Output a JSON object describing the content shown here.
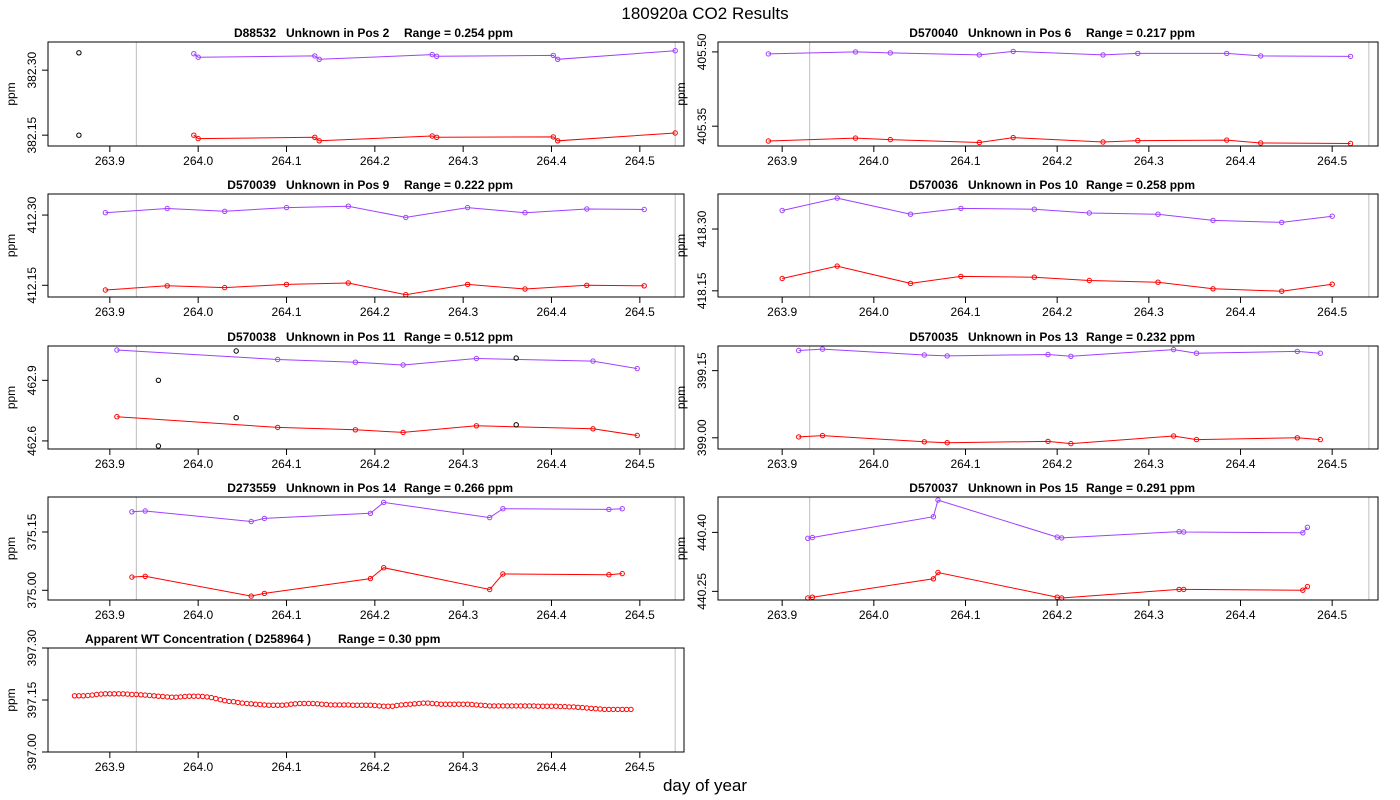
{
  "figure": {
    "title": "180920a  CO2 Results",
    "xlabel": "day of year",
    "xlim": [
      263.83,
      264.55
    ],
    "x_ticks": [
      263.9,
      264.0,
      264.1,
      264.2,
      264.3,
      264.4,
      264.5
    ],
    "x_tick_labels": [
      "263.9",
      "264.0",
      "264.1",
      "264.2",
      "264.3",
      "264.4",
      "264.5"
    ],
    "vlines": [
      263.93,
      264.54
    ],
    "colors": {
      "series_a": "#a040ff",
      "series_b": "#ff0000",
      "extra_points": "#000000",
      "vline": "#bebebe"
    }
  },
  "chart_data": [
    {
      "type": "line",
      "title_id": "D88532",
      "title_desc": "Unknown in Pos 2",
      "title_range": "Range =  0.254 ppm",
      "ylabel": "ppm",
      "ylim": [
        382.125,
        382.365
      ],
      "y_ticks": [
        382.15,
        382.3
      ],
      "y_tick_labels": [
        "382.15",
        "382.30"
      ],
      "series": [
        {
          "name": "upper",
          "color": "#a040ff",
          "x": [
            263.995,
            264.0,
            264.132,
            264.137,
            264.265,
            264.27,
            264.402,
            264.407,
            264.54
          ],
          "y": [
            382.338,
            382.33,
            382.333,
            382.325,
            382.336,
            382.332,
            382.334,
            382.325,
            382.345
          ]
        },
        {
          "name": "lower",
          "color": "#ff0000",
          "x": [
            263.995,
            264.0,
            264.132,
            264.137,
            264.265,
            264.27,
            264.402,
            264.407,
            264.54
          ],
          "y": [
            382.15,
            382.142,
            382.145,
            382.137,
            382.148,
            382.145,
            382.146,
            382.137,
            382.155
          ]
        }
      ],
      "extra_points": {
        "x": [
          263.865,
          263.865
        ],
        "y": [
          382.34,
          382.15
        ]
      }
    },
    {
      "type": "line",
      "title_id": "D570040",
      "title_desc": "Unknown in Pos 6",
      "title_range": "Range =  0.217 ppm",
      "ylabel": "ppm",
      "ylim": [
        405.31,
        405.52
      ],
      "y_ticks": [
        405.35,
        405.5
      ],
      "y_tick_labels": [
        "405.35",
        "405.50"
      ],
      "series": [
        {
          "name": "upper",
          "color": "#a040ff",
          "x": [
            263.885,
            263.98,
            264.018,
            264.115,
            264.152,
            264.25,
            264.288,
            264.385,
            264.422,
            264.52
          ],
          "y": [
            405.496,
            405.5,
            405.498,
            405.494,
            405.501,
            405.494,
            405.497,
            405.497,
            405.492,
            405.491
          ]
        },
        {
          "name": "lower",
          "color": "#ff0000",
          "x": [
            263.885,
            263.98,
            264.018,
            264.115,
            264.152,
            264.25,
            264.288,
            264.385,
            264.422,
            264.52
          ],
          "y": [
            405.32,
            405.326,
            405.323,
            405.317,
            405.327,
            405.318,
            405.321,
            405.322,
            405.316,
            405.315
          ]
        }
      ],
      "extra_points": {
        "x": [],
        "y": []
      }
    },
    {
      "type": "line",
      "title_id": "D570039",
      "title_desc": "Unknown in Pos 9",
      "title_range": "Range =  0.222 ppm",
      "ylabel": "ppm",
      "ylim": [
        412.125,
        412.345
      ],
      "y_ticks": [
        412.15,
        412.3
      ],
      "y_tick_labels": [
        "412.15",
        "412.30"
      ],
      "series": [
        {
          "name": "upper",
          "color": "#a040ff",
          "x": [
            263.895,
            263.965,
            264.03,
            264.1,
            264.17,
            264.235,
            264.305,
            264.37,
            264.44,
            264.505
          ],
          "y": [
            412.305,
            412.314,
            412.308,
            412.316,
            412.319,
            412.295,
            412.316,
            412.305,
            412.313,
            412.312
          ]
        },
        {
          "name": "lower",
          "color": "#ff0000",
          "x": [
            263.895,
            263.965,
            264.03,
            264.1,
            264.17,
            264.235,
            264.305,
            264.37,
            264.44,
            264.505
          ],
          "y": [
            412.14,
            412.149,
            412.145,
            412.152,
            412.155,
            412.13,
            412.152,
            412.142,
            412.15,
            412.149
          ]
        }
      ],
      "extra_points": {
        "x": [],
        "y": []
      }
    },
    {
      "type": "line",
      "title_id": "D570036",
      "title_desc": "Unknown in Pos 10",
      "title_range": "Range =  0.258 ppm",
      "ylabel": "ppm",
      "ylim": [
        418.135,
        418.385
      ],
      "y_ticks": [
        418.15,
        418.3
      ],
      "y_tick_labels": [
        "418.15",
        "418.30"
      ],
      "series": [
        {
          "name": "upper",
          "color": "#a040ff",
          "x": [
            263.9,
            263.96,
            264.04,
            264.095,
            264.175,
            264.235,
            264.31,
            264.37,
            264.445,
            264.5
          ],
          "y": [
            418.345,
            418.375,
            418.336,
            418.35,
            418.348,
            418.339,
            418.336,
            418.321,
            418.316,
            418.331
          ]
        },
        {
          "name": "lower",
          "color": "#ff0000",
          "x": [
            263.9,
            263.96,
            264.04,
            264.095,
            264.175,
            264.235,
            264.31,
            264.37,
            264.445,
            264.5
          ],
          "y": [
            418.18,
            418.21,
            418.168,
            418.185,
            418.183,
            418.175,
            418.171,
            418.155,
            418.149,
            418.166
          ]
        }
      ],
      "extra_points": {
        "x": [],
        "y": []
      }
    },
    {
      "type": "line",
      "title_id": "D570038",
      "title_desc": "Unknown in Pos 11",
      "title_range": "Range =  0.512 ppm",
      "ylabel": "ppm",
      "ylim": [
        462.56,
        463.07
      ],
      "y_ticks": [
        462.6,
        462.9
      ],
      "y_tick_labels": [
        "462.6",
        "462.9"
      ],
      "series": [
        {
          "name": "upper",
          "color": "#a040ff",
          "x": [
            263.908,
            264.09,
            264.178,
            264.232,
            264.315,
            264.447,
            264.497
          ],
          "y": [
            463.05,
            463.003,
            462.99,
            462.976,
            463.008,
            462.995,
            462.958
          ]
        },
        {
          "name": "lower",
          "color": "#ff0000",
          "x": [
            263.908,
            264.09,
            264.178,
            264.232,
            264.315,
            264.447,
            264.497
          ],
          "y": [
            462.72,
            462.667,
            462.655,
            462.642,
            462.675,
            462.66,
            462.627
          ]
        }
      ],
      "extra_points": {
        "x": [
          263.955,
          263.955,
          264.043,
          264.043,
          264.36,
          264.36
        ],
        "y": [
          462.9,
          462.575,
          463.045,
          462.715,
          463.01,
          462.68
        ]
      }
    },
    {
      "type": "line",
      "title_id": "D570035",
      "title_desc": "Unknown in Pos 13",
      "title_range": "Range =  0.232 ppm",
      "ylabel": "ppm",
      "ylim": [
        398.975,
        399.205
      ],
      "y_ticks": [
        399.0,
        399.15
      ],
      "y_tick_labels": [
        "399.00",
        "399.15"
      ],
      "series": [
        {
          "name": "upper",
          "color": "#a040ff",
          "x": [
            263.918,
            263.944,
            264.055,
            264.08,
            264.19,
            264.215,
            264.327,
            264.352,
            264.462,
            264.487
          ],
          "y": [
            399.195,
            399.198,
            399.185,
            399.183,
            399.186,
            399.182,
            399.197,
            399.189,
            399.193,
            399.189
          ]
        },
        {
          "name": "lower",
          "color": "#ff0000",
          "x": [
            263.918,
            263.944,
            264.055,
            264.08,
            264.19,
            264.215,
            264.327,
            264.352,
            264.462,
            264.487
          ],
          "y": [
            399.002,
            399.005,
            398.991,
            398.989,
            398.992,
            398.987,
            399.004,
            398.996,
            399.0,
            398.996
          ]
        }
      ],
      "extra_points": {
        "x": [],
        "y": []
      }
    },
    {
      "type": "line",
      "title_id": "D273559",
      "title_desc": "Unknown in Pos 14",
      "title_range": "Range =  0.266 ppm",
      "ylabel": "ppm",
      "ylim": [
        374.975,
        375.24
      ],
      "y_ticks": [
        375.0,
        375.15
      ],
      "y_tick_labels": [
        "375.00",
        "375.15"
      ],
      "series": [
        {
          "name": "upper",
          "color": "#a040ff",
          "x": [
            263.925,
            263.94,
            264.06,
            264.075,
            264.195,
            264.21,
            264.33,
            264.345,
            264.465,
            264.48
          ],
          "y": [
            375.202,
            375.204,
            375.177,
            375.185,
            375.198,
            375.226,
            375.187,
            375.21,
            375.208,
            375.21
          ]
        },
        {
          "name": "lower",
          "color": "#ff0000",
          "x": [
            263.925,
            263.94,
            264.06,
            264.075,
            264.195,
            264.21,
            264.33,
            264.345,
            264.465,
            264.48
          ],
          "y": [
            375.034,
            375.036,
            374.985,
            374.992,
            375.03,
            375.058,
            375.002,
            375.042,
            375.04,
            375.043
          ]
        }
      ],
      "extra_points": {
        "x": [],
        "y": []
      }
    },
    {
      "type": "line",
      "title_id": "D570037",
      "title_desc": "Unknown in Pos 15",
      "title_range": "Range =  0.291 ppm",
      "ylabel": "ppm",
      "ylim": [
        440.228,
        440.49
      ],
      "y_ticks": [
        440.25,
        440.4
      ],
      "y_tick_labels": [
        "440.25",
        "440.40"
      ],
      "series": [
        {
          "name": "upper",
          "color": "#a040ff",
          "x": [
            263.928,
            263.933,
            264.065,
            264.07,
            264.2,
            264.205,
            264.333,
            264.338,
            264.468,
            264.473
          ],
          "y": [
            440.385,
            440.387,
            440.44,
            440.482,
            440.388,
            440.386,
            440.402,
            440.401,
            440.399,
            440.413
          ]
        },
        {
          "name": "lower",
          "color": "#ff0000",
          "x": [
            263.928,
            263.933,
            264.065,
            264.07,
            264.2,
            264.205,
            264.333,
            264.338,
            264.468,
            264.473
          ],
          "y": [
            440.233,
            440.235,
            440.282,
            440.298,
            440.235,
            440.233,
            440.255,
            440.255,
            440.253,
            440.262
          ]
        }
      ],
      "extra_points": {
        "x": [],
        "y": []
      }
    },
    {
      "type": "scatter",
      "title_id": "Apparent WT Concentration ( D258964 )",
      "title_desc": "",
      "title_range": "Range = 0.30 ppm",
      "ylabel": "ppm",
      "ylim": [
        397.0,
        397.3
      ],
      "y_ticks": [
        397.0,
        397.15,
        397.3
      ],
      "y_tick_labels": [
        "397.00",
        "397.15",
        "397.30"
      ],
      "series": [
        {
          "name": "WT",
          "color": "#ff0000",
          "x_start": 263.86,
          "x_step": 0.005,
          "y": [
            397.162,
            397.162,
            397.162,
            397.163,
            397.164,
            397.166,
            397.167,
            397.168,
            397.168,
            397.168,
            397.168,
            397.168,
            397.167,
            397.166,
            397.166,
            397.165,
            397.164,
            397.163,
            397.162,
            397.161,
            397.16,
            397.159,
            397.158,
            397.158,
            397.159,
            397.16,
            397.161,
            397.161,
            397.161,
            397.16,
            397.159,
            397.157,
            397.154,
            397.151,
            397.148,
            397.146,
            397.145,
            397.143,
            397.141,
            397.14,
            397.139,
            397.138,
            397.137,
            397.136,
            397.135,
            397.135,
            397.135,
            397.135,
            397.136,
            397.138,
            397.139,
            397.14,
            397.14,
            397.14,
            397.14,
            397.139,
            397.138,
            397.137,
            397.136,
            397.136,
            397.136,
            397.136,
            397.136,
            397.135,
            397.135,
            397.135,
            397.135,
            397.135,
            397.134,
            397.133,
            397.132,
            397.132,
            397.132,
            397.134,
            397.136,
            397.137,
            397.138,
            397.139,
            397.14,
            397.141,
            397.141,
            397.14,
            397.139,
            397.138,
            397.138,
            397.138,
            397.138,
            397.138,
            397.138,
            397.138,
            397.137,
            397.136,
            397.135,
            397.134,
            397.133,
            397.133,
            397.133,
            397.133,
            397.133,
            397.133,
            397.133,
            397.133,
            397.133,
            397.133,
            397.133,
            397.132,
            397.132,
            397.132,
            397.132,
            397.132,
            397.131,
            397.131,
            397.13,
            397.13,
            397.129,
            397.128,
            397.127,
            397.126,
            397.125,
            397.124,
            397.123,
            397.123,
            397.123,
            397.123,
            397.123,
            397.123,
            397.123
          ]
        }
      ],
      "extra_points": {
        "x": [],
        "y": []
      }
    }
  ]
}
